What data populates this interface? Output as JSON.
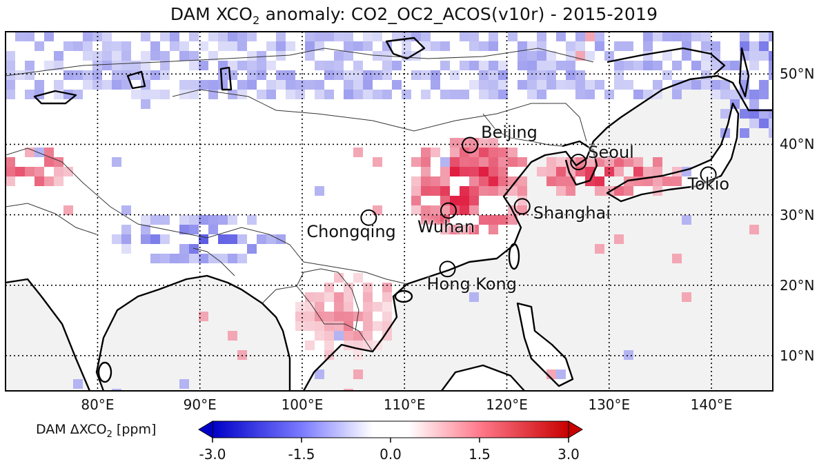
{
  "title": {
    "prefix": "DAM XCO",
    "sub": "2",
    "suffix": " anomaly: CO2_OC2_ACOS(v10r) - 2015-2019"
  },
  "axes": {
    "lon_ticks": [
      "80°E",
      "90°E",
      "100°E",
      "110°E",
      "120°E",
      "130°E",
      "140°E"
    ],
    "lat_ticks": [
      "50°N",
      "40°N",
      "30°N",
      "20°N",
      "10°N"
    ],
    "lon_range": [
      71,
      146
    ],
    "lat_range": [
      5,
      56
    ],
    "grid": true
  },
  "cities": [
    {
      "name": "Beijing",
      "lon": 116.4,
      "lat": 39.9
    },
    {
      "name": "Seoul",
      "lon": 127.0,
      "lat": 37.5
    },
    {
      "name": "Tokio",
      "lon": 139.7,
      "lat": 35.7
    },
    {
      "name": "Wuhan",
      "lon": 114.3,
      "lat": 30.6
    },
    {
      "name": "Shanghai",
      "lon": 121.5,
      "lat": 31.2
    },
    {
      "name": "Chongqing",
      "lon": 106.5,
      "lat": 29.6
    },
    {
      "name": "Hong Kong",
      "lon": 114.2,
      "lat": 22.3
    }
  ],
  "colorbar": {
    "label_prefix": "DAM ΔXCO",
    "label_sub": "2",
    "label_suffix": " [ppm]",
    "ticks": [
      "-3.0",
      "-1.5",
      "0.0",
      "1.5",
      "3.0"
    ],
    "range": [
      -3.0,
      3.0
    ],
    "colors": {
      "low": "#0000c8",
      "mid": "#ffffff",
      "high": "#c80000"
    }
  },
  "colors": {
    "ocean": "#f2f2f2",
    "land": "#ffffff",
    "coast": "#000000",
    "border": "#333333"
  }
}
